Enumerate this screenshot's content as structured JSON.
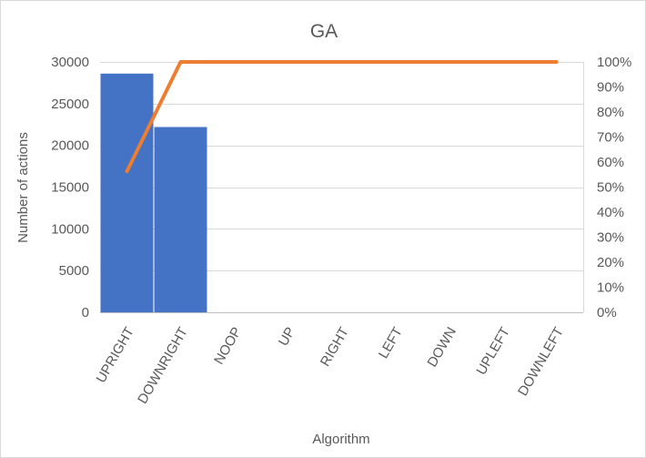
{
  "chart_data": {
    "type": "bar",
    "title": "GA",
    "xlabel": "Algorithm",
    "ylabel": "Number of actions",
    "categories": [
      "UPRIGHT",
      "DOWNRIGHT",
      "NOOP",
      "UP",
      "RIGHT",
      "LEFT",
      "DOWN",
      "UPLEFT",
      "DOWNLEFT"
    ],
    "series": [
      {
        "type": "bar",
        "axis": "left",
        "values": [
          28600,
          22200,
          0,
          0,
          0,
          0,
          0,
          0,
          0
        ],
        "color": "#4472c4"
      },
      {
        "type": "line",
        "axis": "right",
        "values": [
          0.563,
          1.0,
          1.0,
          1.0,
          1.0,
          1.0,
          1.0,
          1.0,
          1.0
        ],
        "color": "#ed7d31"
      }
    ],
    "ylim": [
      0,
      30000
    ],
    "yticks": [
      "0",
      "5000",
      "10000",
      "15000",
      "20000",
      "25000",
      "30000"
    ],
    "y2lim": [
      0,
      1
    ],
    "y2ticks": [
      "0%",
      "10%",
      "20%",
      "30%",
      "40%",
      "50%",
      "60%",
      "70%",
      "80%",
      "90%",
      "100%"
    ],
    "grid": true,
    "legend": "none"
  }
}
